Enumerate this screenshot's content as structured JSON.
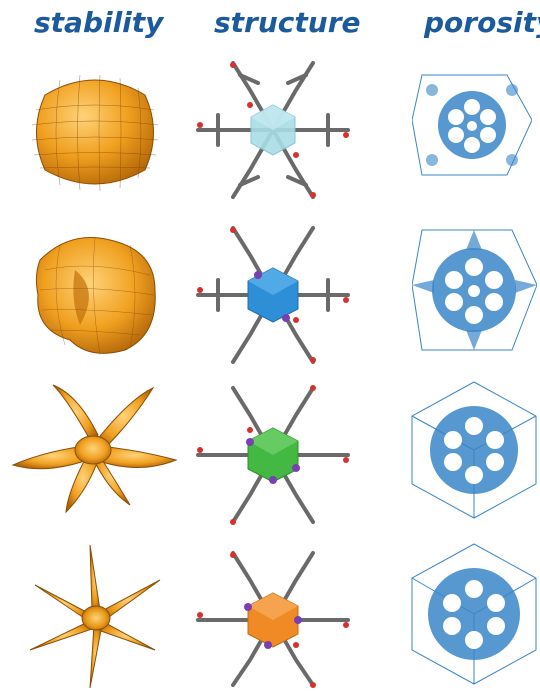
{
  "headers": {
    "stability": "stability",
    "structure": "structure",
    "porosity": "porosity"
  },
  "rows": [
    {
      "index": 1,
      "polyhedron_color": "#a9dde6",
      "polyhedron_stroke": "#7fbfd0"
    },
    {
      "index": 2,
      "polyhedron_color": "#2f8fd6",
      "polyhedron_stroke": "#1f6fb0"
    },
    {
      "index": 3,
      "polyhedron_color": "#43b842",
      "polyhedron_stroke": "#2e8f2e"
    },
    {
      "index": 4,
      "polyhedron_color": "#f08a24",
      "polyhedron_stroke": "#c46a12"
    }
  ],
  "colors": {
    "header_text": "#1c5a9e",
    "surface_orange": "#f0a020",
    "pore_blue": "#3a86c8",
    "bond_gray": "#6a6a6a",
    "oxygen_red": "#d63030",
    "metal_purple": "#7a3fb0"
  }
}
